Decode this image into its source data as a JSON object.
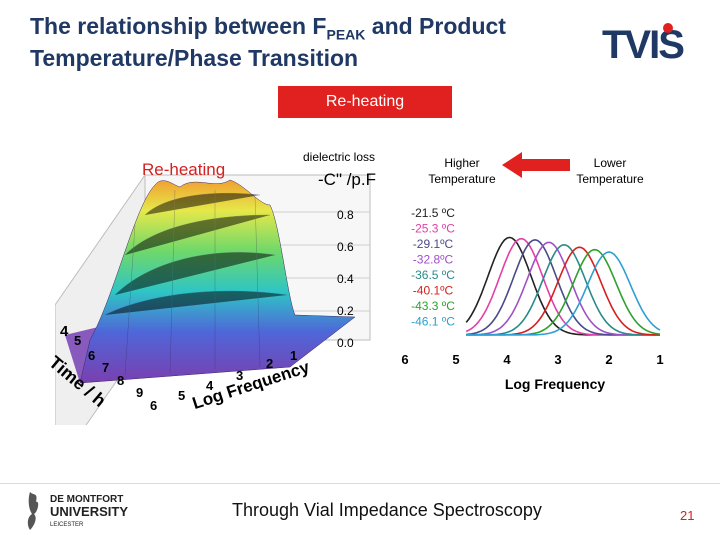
{
  "slide": {
    "title_part1": "The relationship between F",
    "title_sub": "PEAK",
    "title_part2": " and Product",
    "title_line2": "Temperature/Phase Transition",
    "logo_text": "TVIS",
    "banner": "Re-heating",
    "footer": "Through Vial Impedance Spectroscopy",
    "page_number": "21",
    "dmu_logo": {
      "line1": "DE MONTFORT",
      "line2": "UNIVERSITY",
      "line3": "LEICESTER"
    }
  },
  "surface_plot": {
    "label": "Re-heating",
    "zlabel_1": "dielectric loss",
    "zlabel_2": "-C\" /p.F",
    "z_ticks": [
      "0.8",
      "0.6",
      "0.4",
      "0.2",
      "0.0"
    ],
    "time_ticks": [
      "4",
      "5",
      "6",
      "7",
      "8",
      "9"
    ],
    "time_label": "Time / h",
    "freq_ticks": [
      "6",
      "5",
      "4",
      "3",
      "2",
      "1"
    ],
    "freq_label": "Log Frequency"
  },
  "arrow": {
    "left_label_1": "Higher",
    "left_label_2": "Temperature",
    "right_label_1": "Lower",
    "right_label_2": "Temperature",
    "color": "#e0211f"
  },
  "chart_data": {
    "type": "line",
    "xlabel": "Log Frequency",
    "x_ticks": [
      "6",
      "5",
      "4",
      "3",
      "2",
      "1"
    ],
    "series": [
      {
        "name": "-21.5 ºC",
        "color": "#222222",
        "peak": 3.95,
        "height": 0.8
      },
      {
        "name": "-25.3 ºC",
        "color": "#e040a8",
        "peak": 3.72,
        "height": 0.79
      },
      {
        "name": "-29.1ºC",
        "color": "#4a4a8a",
        "peak": 3.45,
        "height": 0.78
      },
      {
        "name": "-32.8ºC",
        "color": "#a050c8",
        "peak": 3.18,
        "height": 0.76
      },
      {
        "name": "-36.5 ºC",
        "color": "#2a8a8a",
        "peak": 2.88,
        "height": 0.74
      },
      {
        "name": "-40.1ºC",
        "color": "#d62020",
        "peak": 2.58,
        "height": 0.72
      },
      {
        "name": "-43.3 ºC",
        "color": "#2ea02e",
        "peak": 2.28,
        "height": 0.7
      },
      {
        "name": "-46.1 ºC",
        "color": "#2e9fd0",
        "peak": 2.0,
        "height": 0.68
      }
    ]
  }
}
